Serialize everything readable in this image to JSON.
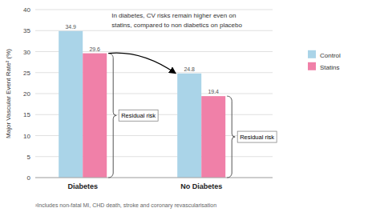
{
  "chart_data": {
    "type": "bar",
    "categories": [
      "Diabetes",
      "No Diabetes"
    ],
    "series": [
      {
        "name": "Control",
        "color": "#aad4e8",
        "values": [
          34.9,
          24.8
        ]
      },
      {
        "name": "Statins",
        "color": "#f080a8",
        "values": [
          29.6,
          19.4
        ]
      }
    ],
    "y_label": "Major Vascular Event Rate² (%)",
    "ylim": [
      0,
      40
    ],
    "yticks": [
      0,
      5,
      10,
      15,
      20,
      25,
      30,
      35,
      40
    ],
    "grid": true,
    "data_labels": true,
    "legend": "right",
    "annotations": [
      "In diabetes, CV risks remain higher even on\nstatins, compared to non diabetics on placebo",
      "Residual risk",
      "Residual risk",
      "²Includes non-fatal MI, CHD death, stroke and coronary revascularisation"
    ]
  }
}
